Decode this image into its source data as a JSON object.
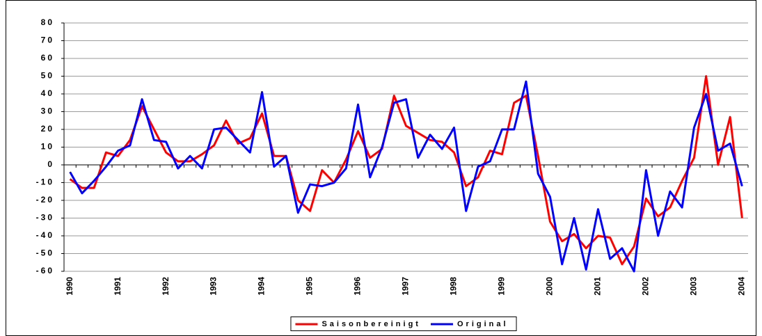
{
  "chart_data": {
    "type": "line",
    "categories": [
      "1990",
      null,
      null,
      null,
      "1991",
      null,
      null,
      null,
      "1992",
      null,
      null,
      null,
      "1993",
      null,
      null,
      null,
      "1994",
      null,
      null,
      null,
      "1995",
      null,
      null,
      null,
      "1996",
      null,
      null,
      null,
      "1997",
      null,
      null,
      null,
      "1998",
      null,
      null,
      null,
      "1999",
      null,
      null,
      null,
      "2000",
      null,
      null,
      null,
      "2001",
      null,
      null,
      null,
      "2002",
      null,
      null,
      null,
      "2003",
      null,
      null,
      null,
      "2004"
    ],
    "series": [
      {
        "name": "Saisonbereinigt",
        "color": "#ff0000",
        "values": [
          -8,
          -13,
          -13,
          7,
          5,
          14,
          33,
          20,
          7,
          2,
          2,
          6,
          11,
          25,
          12,
          15,
          29,
          5,
          5,
          -20,
          -26,
          -3,
          -10,
          3,
          19,
          4,
          9,
          39,
          22,
          18,
          14,
          13,
          7,
          -12,
          -7,
          8,
          6,
          35,
          39,
          5,
          -32,
          -43,
          -39,
          -47,
          -40,
          -41,
          -56,
          -46,
          -19,
          -29,
          -24,
          -9,
          4,
          50,
          0,
          27,
          -30
        ]
      },
      {
        "name": "Original",
        "color": "#0000ff",
        "values": [
          -4,
          -16,
          -9,
          -1,
          8,
          11,
          37,
          14,
          13,
          -2,
          5,
          -2,
          20,
          21,
          14,
          7,
          41,
          -1,
          5,
          -27,
          -11,
          -12,
          -10,
          -2,
          34,
          -7,
          10,
          35,
          37,
          4,
          17,
          9,
          21,
          -26,
          -1,
          2,
          20,
          20,
          47,
          -5,
          -18,
          -56,
          -30,
          -59,
          -25,
          -53,
          -47,
          -60,
          -3,
          -40,
          -15,
          -24,
          21,
          40,
          8,
          12,
          -12
        ]
      }
    ],
    "ylim": [
      -60,
      80
    ],
    "yticks": [
      -60,
      -50,
      -40,
      -30,
      -20,
      -10,
      0,
      10,
      20,
      30,
      40,
      50,
      60,
      70,
      80
    ],
    "grid": true,
    "legend": "bottom"
  }
}
